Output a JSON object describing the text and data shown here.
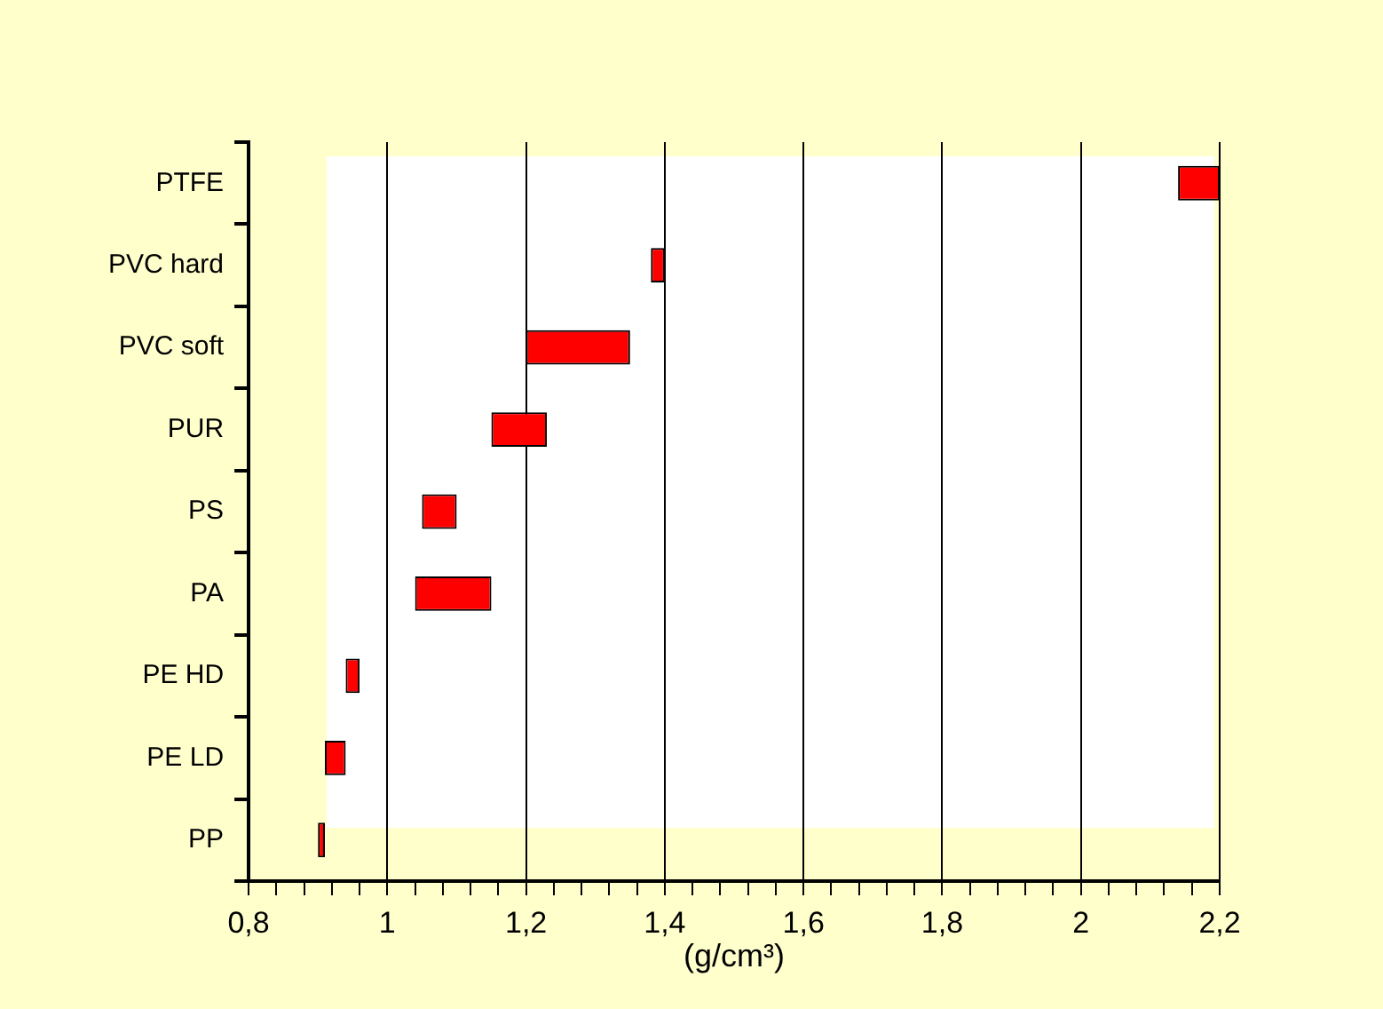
{
  "chart_data": {
    "type": "bar",
    "orientation": "horizontal",
    "xlabel": "(g/cm³)",
    "categories": [
      "PTFE",
      "PVC hard",
      "PVC soft",
      "PUR",
      "PS",
      "PA",
      "PE HD",
      "PE LD",
      "PP"
    ],
    "base": [
      2.14,
      1.38,
      1.2,
      1.15,
      1.05,
      1.04,
      0.94,
      0.91,
      0.9
    ],
    "values": [
      0.06,
      0.02,
      0.15,
      0.08,
      0.05,
      0.11,
      0.02,
      0.03,
      0.01
    ],
    "color": "#ff0000",
    "xlim": [
      0.8,
      2.2
    ],
    "xticks": [
      {
        "value": 0.8,
        "label": "0,8"
      },
      {
        "value": 0.84,
        "label": null
      },
      {
        "value": 0.88,
        "label": null
      },
      {
        "value": 0.92,
        "label": null
      },
      {
        "value": 0.96,
        "label": null
      },
      1,
      {
        "value": 1.04,
        "label": null
      },
      {
        "value": 1.08,
        "label": null
      },
      {
        "value": 1.12,
        "label": null
      },
      {
        "value": 1.16,
        "label": null
      },
      {
        "value": 1.2,
        "label": "1,2"
      },
      {
        "value": 1.24,
        "label": null
      },
      {
        "value": 1.28,
        "label": null
      },
      {
        "value": 1.32,
        "label": null
      },
      {
        "value": 1.36,
        "label": null
      },
      {
        "value": 1.4,
        "label": "1,4"
      },
      {
        "value": 1.44,
        "label": null
      },
      {
        "value": 1.48,
        "label": null
      },
      {
        "value": 1.52,
        "label": null
      },
      {
        "value": 1.56,
        "label": null
      },
      {
        "value": 1.6,
        "label": "1,6"
      },
      {
        "value": 1.64,
        "label": null
      },
      {
        "value": 1.68,
        "label": null
      },
      {
        "value": 1.72,
        "label": null
      },
      {
        "value": 1.76,
        "label": null
      },
      {
        "value": 1.8,
        "label": "1,8"
      },
      {
        "value": 1.84,
        "label": null
      },
      {
        "value": 1.88,
        "label": null
      },
      {
        "value": 1.92,
        "label": null
      },
      {
        "value": 1.96,
        "label": null
      },
      2,
      {
        "value": 2.04,
        "label": null
      },
      {
        "value": 2.08,
        "label": null
      },
      {
        "value": 2.12,
        "label": null
      },
      {
        "value": 2.16,
        "label": null
      },
      {
        "value": 2.2,
        "label": "2,2"
      }
    ],
    "grid": "x",
    "legend": false
  }
}
